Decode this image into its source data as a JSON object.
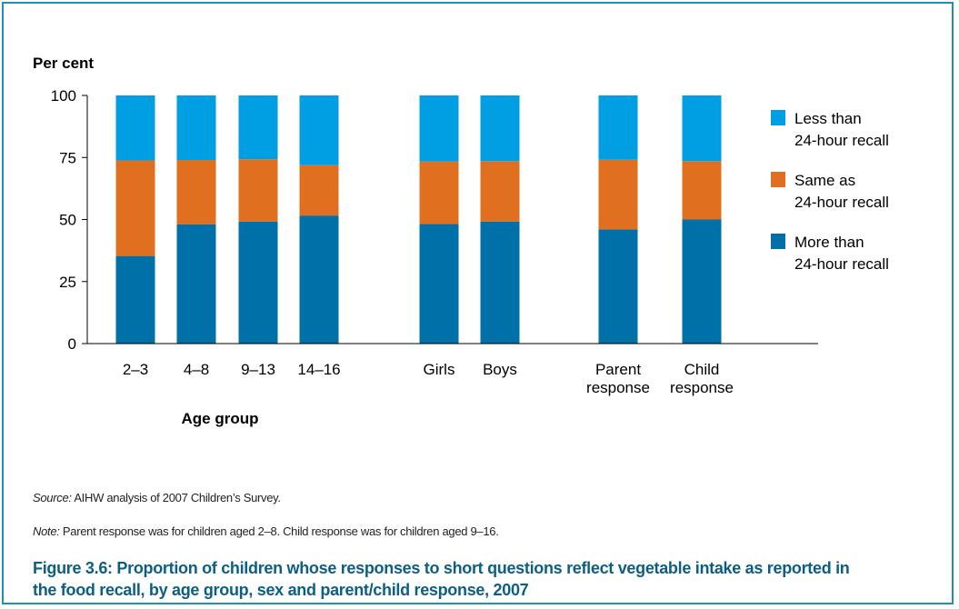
{
  "chart_data": {
    "type": "bar",
    "stacked": true,
    "ylabel": "Per cent",
    "xlabel": "Age group",
    "ylim": [
      0,
      100
    ],
    "yticks": [
      0,
      25,
      50,
      75,
      100
    ],
    "grid": false,
    "legend_position": "right",
    "categories": [
      {
        "lines": [
          "2–3"
        ]
      },
      {
        "lines": [
          "4–8"
        ]
      },
      {
        "lines": [
          "9–13"
        ]
      },
      {
        "lines": [
          "14–16"
        ]
      },
      {
        "lines": [
          "Girls"
        ]
      },
      {
        "lines": [
          "Boys"
        ]
      },
      {
        "lines": [
          "Parent",
          "response"
        ]
      },
      {
        "lines": [
          "Child",
          "response"
        ]
      }
    ],
    "series": [
      {
        "name_lines": [
          "More than",
          "24-hour recall"
        ],
        "color": "#0070a8",
        "values": [
          35.3,
          48.1,
          49.2,
          51.6,
          48.2,
          49.2,
          46.0,
          50.0
        ]
      },
      {
        "name_lines": [
          "Same as",
          "24-hour recall"
        ],
        "color": "#e0701f",
        "values": [
          38.5,
          25.9,
          25.1,
          20.3,
          25.2,
          24.3,
          28.1,
          23.5
        ]
      },
      {
        "name_lines": [
          "Less than",
          "24-hour recall"
        ],
        "color": "#009fe3",
        "values": [
          26.2,
          26.0,
          25.7,
          28.1,
          26.6,
          26.5,
          25.9,
          26.5
        ]
      }
    ]
  },
  "footer": {
    "source_label": "Source:",
    "source_text": "AIHW analysis of 2007 Children’s Survey.",
    "note_label": "Note:",
    "note_text": "Parent response was for children aged 2–8. Child response was for children aged 9–16.",
    "caption": "Figure 3.6: Proportion of children whose responses to short questions reflect vegetable intake as reported in the food recall, by age group, sex and parent/child response, 2007"
  }
}
